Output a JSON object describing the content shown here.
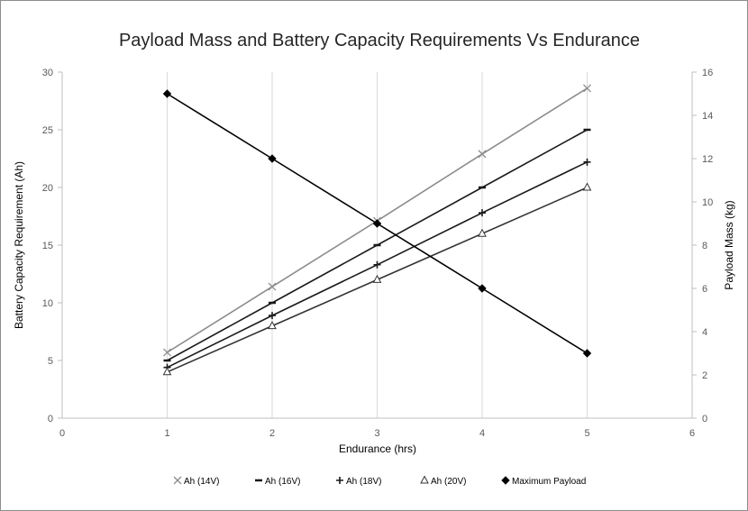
{
  "chart_data": {
    "type": "line",
    "title": "Payload Mass and Battery Capacity Requirements Vs Endurance",
    "xlabel": "Endurance (hrs)",
    "ylabel_left": "Battery Capacity Requirement (Ah)",
    "ylabel_right": "Payload Mass (kg)",
    "xlim": [
      0,
      6
    ],
    "ylim_left": [
      0,
      30
    ],
    "ylim_right": [
      0,
      16
    ],
    "x_ticks": [
      0,
      1,
      2,
      3,
      4,
      5,
      6
    ],
    "y_left_ticks": [
      0,
      5,
      10,
      15,
      20,
      25,
      30
    ],
    "y_right_ticks": [
      0,
      2,
      4,
      6,
      8,
      10,
      12,
      14,
      16
    ],
    "grid": "vertical",
    "legend_position": "bottom",
    "series": [
      {
        "name": "Ah (14V)",
        "axis": "left",
        "marker": "x",
        "color": "#8c8c8c",
        "x": [
          1,
          2,
          3,
          4,
          5
        ],
        "y": [
          5.7,
          11.4,
          17.1,
          22.9,
          28.6
        ]
      },
      {
        "name": "Ah (16V)",
        "axis": "left",
        "marker": "dash",
        "color": "#1a1a1a",
        "x": [
          1,
          2,
          3,
          4,
          5
        ],
        "y": [
          5.0,
          10.0,
          15.0,
          20.0,
          25.0
        ]
      },
      {
        "name": "Ah (18V)",
        "axis": "left",
        "marker": "plus",
        "color": "#1a1a1a",
        "x": [
          1,
          2,
          3,
          4,
          5
        ],
        "y": [
          4.4,
          8.9,
          13.3,
          17.8,
          22.2
        ]
      },
      {
        "name": "Ah (20V)",
        "axis": "left",
        "marker": "triangle",
        "color": "#333333",
        "x": [
          1,
          2,
          3,
          4,
          5
        ],
        "y": [
          4.0,
          8.0,
          12.0,
          16.0,
          20.0
        ]
      },
      {
        "name": "Maximum Payload",
        "axis": "right",
        "marker": "diamond",
        "color": "#000000",
        "x": [
          1,
          2,
          3,
          4,
          5
        ],
        "y": [
          15,
          12,
          9,
          6,
          3
        ]
      }
    ]
  }
}
